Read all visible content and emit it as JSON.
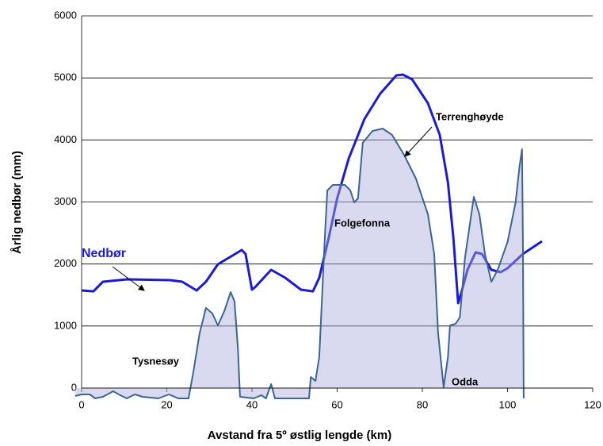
{
  "chart_data": {
    "type": "line",
    "xlabel": "Avstand fra 5º østlig lengde (km)",
    "ylabel": "Årlig nedbør (mm)",
    "xlim": [
      0,
      120
    ],
    "xticks": [
      0,
      20,
      40,
      60,
      80,
      100,
      120
    ],
    "ylim": [
      0,
      6000
    ],
    "yticks": [
      0,
      1000,
      2000,
      3000,
      4000,
      5000,
      6000
    ],
    "grid": true,
    "series": [
      {
        "name": "Nedbør",
        "color": "#1a1ad8",
        "x": [
          0,
          2.8,
          5,
          10.6,
          20.8,
          23.6,
          27,
          29.2,
          32,
          37.6,
          38.5,
          40,
          40.7,
          44.5,
          47.8,
          51.5,
          54.3,
          55.8,
          58,
          60,
          62.7,
          66.4,
          70.1,
          73.9,
          75.4,
          77.6,
          81.3,
          84.1,
          86,
          87.3,
          88.4,
          89.1,
          90.6,
          92.5,
          94,
          96.2,
          98.4,
          100,
          103.6,
          108.1
        ],
        "values": [
          1573,
          1560,
          1714,
          1753,
          1740,
          1714,
          1573,
          1714,
          1996,
          2226,
          2162,
          1586,
          1625,
          1906,
          1778,
          1586,
          1560,
          1778,
          2418,
          3057,
          3697,
          4337,
          4746,
          5040,
          5053,
          4976,
          4593,
          4081,
          3313,
          2418,
          1369,
          1522,
          1906,
          2188,
          2162,
          1906,
          1868,
          1932,
          2162,
          2367
        ]
      },
      {
        "name": "Terrenghøyde",
        "color": "#3d6591",
        "fill": "rgba(170,170,220,0.45)",
        "x": [
          -1.5,
          0,
          1.9,
          3.2,
          5,
          7.4,
          8.7,
          10.6,
          12.5,
          14.3,
          18,
          20.5,
          22.7,
          25.1,
          26.2,
          27.7,
          29.2,
          30.7,
          32,
          33.5,
          35,
          35.9,
          36.7,
          37.2,
          40.4,
          42.2,
          43.3,
          44.5,
          45.4,
          47.8,
          53.4,
          53.8,
          54.9,
          55.8,
          57.1,
          57.7,
          59,
          61.8,
          63.1,
          64,
          64.9,
          66,
          68.3,
          70.7,
          72.9,
          75.7,
          78.5,
          81.3,
          82.8,
          83.7,
          85,
          86,
          86.5,
          87.8,
          88.8,
          90,
          92.1,
          93.4,
          94.7,
          96.2,
          97.7,
          100,
          101.9,
          102.8,
          103.4,
          103.6,
          103.8
        ],
        "values": [
          -128,
          -102,
          -102,
          -166,
          -141,
          -51,
          -102,
          -166,
          -102,
          -141,
          -166,
          -102,
          -166,
          -166,
          243,
          883,
          1292,
          1203,
          1011,
          1241,
          1548,
          1394,
          627,
          -141,
          -166,
          -115,
          -166,
          64,
          -166,
          -166,
          -166,
          179,
          115,
          499,
          2418,
          3185,
          3275,
          3275,
          3185,
          2993,
          3057,
          3953,
          4145,
          4183,
          4081,
          3761,
          3377,
          2802,
          2162,
          883,
          13,
          499,
          1011,
          1036,
          1139,
          2098,
          3083,
          2802,
          2162,
          1714,
          1906,
          2354,
          2993,
          3569,
          3851,
          2418,
          -166
        ]
      }
    ],
    "annotations": [
      "Folgefonna",
      "Tysnesøy",
      "Odda"
    ]
  }
}
